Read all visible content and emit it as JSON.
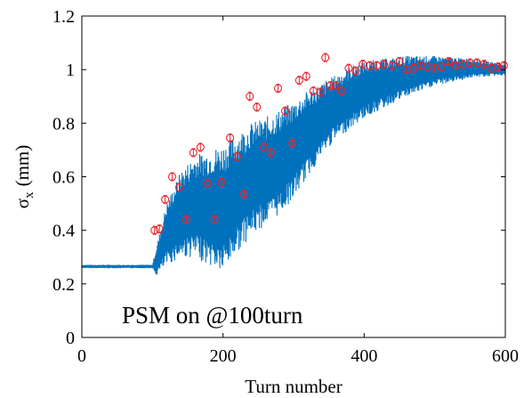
{
  "chart_data": {
    "type": "scatter",
    "title": "",
    "xlabel": "Turn number",
    "ylabel": {
      "symbol": "σ",
      "subscript": "x",
      "unit": "(mm)"
    },
    "xlim": [
      0,
      600
    ],
    "ylim": [
      0,
      1.2
    ],
    "x_ticks": [
      0,
      200,
      400,
      600
    ],
    "x_tick_labels": [
      "0",
      "200",
      "400",
      "600"
    ],
    "y_ticks": [
      0,
      0.2,
      0.4,
      0.6,
      0.8,
      1.0,
      1.2
    ],
    "y_tick_labels": [
      "0",
      "0.2",
      "0.4",
      "0.6",
      "0.8",
      "1",
      "1.2"
    ],
    "grid": false,
    "annotation": "PSM on @100turn",
    "series": [
      {
        "style": "line",
        "color": "#0072BD",
        "envelope": [
          {
            "x": 0,
            "lo": 0.26,
            "hi": 0.27
          },
          {
            "x": 100,
            "lo": 0.26,
            "hi": 0.27
          },
          {
            "x": 105,
            "lo": 0.23,
            "hi": 0.33
          },
          {
            "x": 120,
            "lo": 0.27,
            "hi": 0.5
          },
          {
            "x": 140,
            "lo": 0.3,
            "hi": 0.62
          },
          {
            "x": 160,
            "lo": 0.3,
            "hi": 0.68
          },
          {
            "x": 180,
            "lo": 0.27,
            "hi": 0.7
          },
          {
            "x": 200,
            "lo": 0.24,
            "hi": 0.72
          },
          {
            "x": 220,
            "lo": 0.32,
            "hi": 0.76
          },
          {
            "x": 240,
            "lo": 0.38,
            "hi": 0.8
          },
          {
            "x": 260,
            "lo": 0.42,
            "hi": 0.82
          },
          {
            "x": 280,
            "lo": 0.46,
            "hi": 0.85
          },
          {
            "x": 300,
            "lo": 0.52,
            "hi": 0.88
          },
          {
            "x": 320,
            "lo": 0.6,
            "hi": 0.92
          },
          {
            "x": 340,
            "lo": 0.68,
            "hi": 0.95
          },
          {
            "x": 360,
            "lo": 0.74,
            "hi": 0.98
          },
          {
            "x": 380,
            "lo": 0.78,
            "hi": 1.01
          },
          {
            "x": 400,
            "lo": 0.82,
            "hi": 1.03
          },
          {
            "x": 430,
            "lo": 0.86,
            "hi": 1.04
          },
          {
            "x": 460,
            "lo": 0.9,
            "hi": 1.05
          },
          {
            "x": 500,
            "lo": 0.94,
            "hi": 1.05
          },
          {
            "x": 550,
            "lo": 0.97,
            "hi": 1.04
          },
          {
            "x": 600,
            "lo": 0.98,
            "hi": 1.02
          }
        ]
      },
      {
        "style": "markers",
        "marker": "circle",
        "color": "#E8262C",
        "error_bar": 0.015,
        "points": [
          [
            103,
            0.4
          ],
          [
            110,
            0.405
          ],
          [
            118,
            0.515
          ],
          [
            128,
            0.6
          ],
          [
            138,
            0.56
          ],
          [
            148,
            0.44
          ],
          [
            158,
            0.69
          ],
          [
            168,
            0.71
          ],
          [
            178,
            0.575
          ],
          [
            188,
            0.44
          ],
          [
            198,
            0.58
          ],
          [
            210,
            0.745
          ],
          [
            220,
            0.675
          ],
          [
            230,
            0.535
          ],
          [
            238,
            0.9
          ],
          [
            248,
            0.86
          ],
          [
            258,
            0.71
          ],
          [
            268,
            0.69
          ],
          [
            278,
            0.93
          ],
          [
            288,
            0.845
          ],
          [
            298,
            0.725
          ],
          [
            308,
            0.96
          ],
          [
            318,
            0.975
          ],
          [
            328,
            0.92
          ],
          [
            338,
            0.915
          ],
          [
            345,
            1.045
          ],
          [
            352,
            0.94
          ],
          [
            360,
            0.94
          ],
          [
            368,
            0.92
          ],
          [
            378,
            1.005
          ],
          [
            388,
            0.995
          ],
          [
            398,
            1.02
          ],
          [
            408,
            1.015
          ],
          [
            418,
            1.015
          ],
          [
            428,
            1.02
          ],
          [
            440,
            1.015
          ],
          [
            450,
            1.03
          ],
          [
            460,
            1.0
          ],
          [
            470,
            1.005
          ],
          [
            480,
            1.015
          ],
          [
            490,
            1.01
          ],
          [
            500,
            1.005
          ],
          [
            510,
            1.01
          ],
          [
            520,
            1.03
          ],
          [
            530,
            1.015
          ],
          [
            540,
            1.02
          ],
          [
            550,
            1.025
          ],
          [
            560,
            1.025
          ],
          [
            570,
            1.02
          ],
          [
            580,
            1.005
          ],
          [
            590,
            1.01
          ],
          [
            598,
            1.015
          ]
        ]
      }
    ]
  }
}
